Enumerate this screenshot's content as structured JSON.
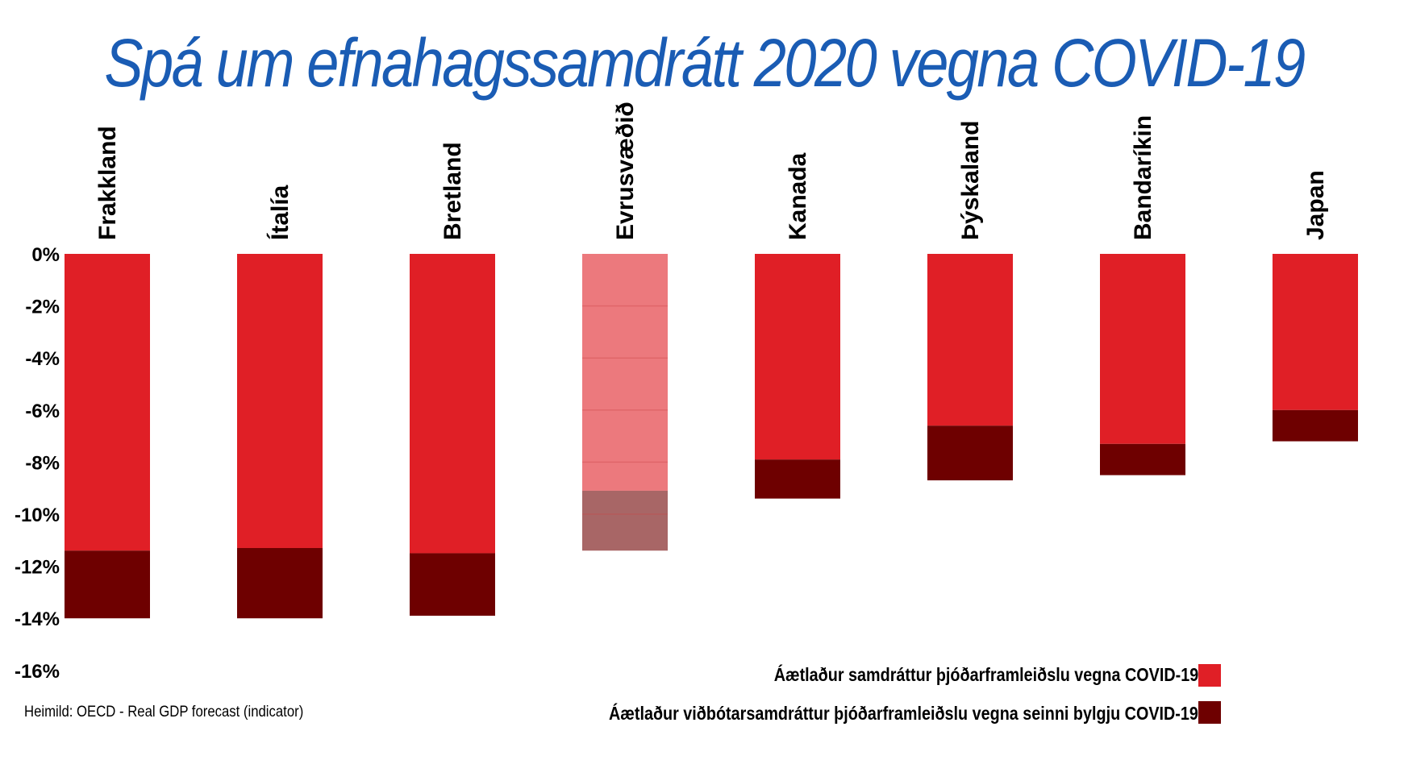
{
  "chart_data": {
    "type": "bar",
    "stacked": true,
    "title": "Spá um efnahagssamdrátt 2020 vegna COVID-19",
    "categories": [
      "Frakkland",
      "Ítalía",
      "Bretland",
      "Evrusvæðið",
      "Kanada",
      "Þýskaland",
      "Bandaríkin",
      "Japan"
    ],
    "series": [
      {
        "name": "Áætlaður samdráttur þjóðarframleiðslu vegna COVID-19",
        "color": "#e01f26",
        "values": [
          -11.4,
          -11.3,
          -11.5,
          -9.1,
          -7.9,
          -6.6,
          -7.3,
          -6.0
        ]
      },
      {
        "name": "Áætlaður viðbótarsamdráttur þjóðarframleiðslu vegna seinni bylgju COVID-19",
        "color": "#6e0000",
        "values": [
          -2.6,
          -2.7,
          -2.4,
          -2.3,
          -1.5,
          -2.1,
          -1.2,
          -1.2
        ]
      }
    ],
    "highlighted_faded_category": "Evrusvæðið",
    "yticks": [
      "0%",
      "-2%",
      "-4%",
      "-6%",
      "-8%",
      "-10%",
      "-12%",
      "-14%",
      "-16%"
    ],
    "ylim": [
      -16,
      0
    ],
    "grid": false,
    "legend_position": "bottom-right",
    "source": "Heimild: OECD - Real GDP forecast (indicator)"
  }
}
